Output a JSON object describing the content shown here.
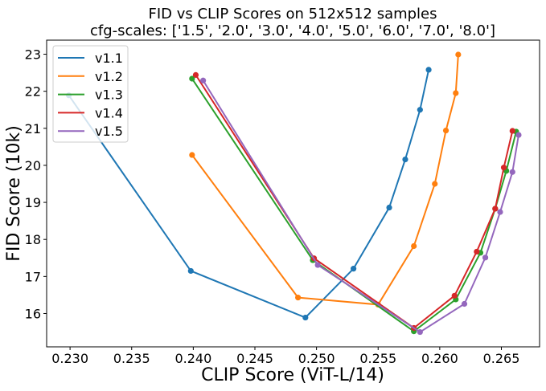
{
  "chart_data": {
    "type": "line",
    "title": "FID vs CLIP Scores on 512x512 samples",
    "subtitle": "cfg-scales: ['1.5', '2.0', '3.0', '4.0', '5.0', '6.0', '7.0', '8.0']",
    "xlabel": "CLIP Score (ViT-L/14)",
    "ylabel": "FID Score (10k)",
    "xlim": [
      0.2281,
      0.2681
    ],
    "ylim": [
      15.1,
      23.38
    ],
    "xticks": [
      0.23,
      0.235,
      0.24,
      0.245,
      0.25,
      0.255,
      0.26,
      0.265
    ],
    "xtick_labels": [
      "0.230",
      "0.235",
      "0.240",
      "0.245",
      "0.250",
      "0.255",
      "0.260",
      "0.265"
    ],
    "yticks": [
      16,
      17,
      18,
      19,
      20,
      21,
      22,
      23
    ],
    "ytick_labels": [
      "16",
      "17",
      "18",
      "19",
      "20",
      "21",
      "22",
      "23"
    ],
    "grid": false,
    "legend_position": "top-left",
    "markers": true,
    "series": [
      {
        "name": "v1.1",
        "color": "#1f77b4",
        "x": [
          0.2299,
          0.2398,
          0.2491,
          0.253,
          0.2559,
          0.2572,
          0.2584,
          0.2591
        ],
        "y": [
          21.89,
          17.15,
          15.89,
          17.21,
          18.86,
          20.16,
          21.5,
          22.58
        ]
      },
      {
        "name": "v1.2",
        "color": "#ff7f0e",
        "x": [
          0.2399,
          0.2485,
          0.255,
          0.2579,
          0.2596,
          0.2605,
          0.2613,
          0.2615
        ],
        "y": [
          20.28,
          16.43,
          16.24,
          17.82,
          19.5,
          20.94,
          21.95,
          22.99
        ]
      },
      {
        "name": "v1.3",
        "color": "#2ca02c",
        "x": [
          0.2399,
          0.2497,
          0.2579,
          0.2613,
          0.2633,
          0.2645,
          0.2654,
          0.2662
        ],
        "y": [
          22.34,
          17.44,
          15.52,
          16.38,
          17.64,
          18.83,
          19.85,
          20.91
        ]
      },
      {
        "name": "v1.4",
        "color": "#d62728",
        "x": [
          0.2402,
          0.2498,
          0.2579,
          0.2612,
          0.263,
          0.2645,
          0.2652,
          0.2659
        ],
        "y": [
          22.44,
          17.49,
          15.61,
          16.48,
          17.67,
          18.83,
          19.94,
          20.93
        ]
      },
      {
        "name": "v1.5",
        "color": "#9467bd",
        "x": [
          0.2408,
          0.2501,
          0.2584,
          0.262,
          0.2637,
          0.2649,
          0.2659,
          0.2664
        ],
        "y": [
          22.29,
          17.31,
          15.5,
          16.26,
          17.51,
          18.74,
          19.82,
          20.82
        ]
      }
    ]
  }
}
